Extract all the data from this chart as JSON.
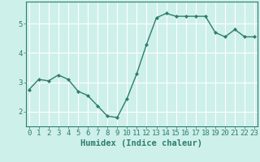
{
  "x": [
    0,
    1,
    2,
    3,
    4,
    5,
    6,
    7,
    8,
    9,
    10,
    11,
    12,
    13,
    14,
    15,
    16,
    17,
    18,
    19,
    20,
    21,
    22,
    23
  ],
  "y": [
    2.75,
    3.1,
    3.05,
    3.25,
    3.1,
    2.7,
    2.55,
    2.2,
    1.85,
    1.8,
    2.45,
    3.3,
    4.3,
    5.2,
    5.35,
    5.25,
    5.25,
    5.25,
    5.25,
    4.7,
    4.55,
    4.8,
    4.55,
    4.55
  ],
  "line_color": "#2d7d6e",
  "marker": "D",
  "marker_size": 2.0,
  "bg_color": "#cef0ea",
  "grid_color": "#ffffff",
  "axis_color": "#2d7d6e",
  "xlabel": "Humidex (Indice chaleur)",
  "xlabel_fontsize": 7.5,
  "tick_fontsize": 6.5,
  "ylim": [
    1.5,
    5.75
  ],
  "yticks": [
    2,
    3,
    4,
    5
  ],
  "xticks": [
    0,
    1,
    2,
    3,
    4,
    5,
    6,
    7,
    8,
    9,
    10,
    11,
    12,
    13,
    14,
    15,
    16,
    17,
    18,
    19,
    20,
    21,
    22,
    23
  ],
  "xlim": [
    -0.3,
    23.3
  ]
}
